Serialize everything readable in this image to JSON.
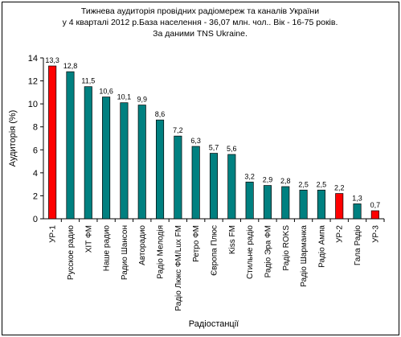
{
  "chart_data": {
    "type": "bar",
    "title": [
      "Тижнева аудиторія провідних радіомереж та каналів України",
      "у 4 кварталі 2012 р.База населення - 36,07 млн. чол.. Вік - 16-75 років.",
      "За даними TNS Ukraine."
    ],
    "xlabel": "Радіостанції",
    "ylabel": "Аудиторія (%)",
    "ylim": [
      0,
      14
    ],
    "yticks": [
      0,
      2,
      4,
      6,
      8,
      10,
      12,
      14
    ],
    "grid": false,
    "legend": "none",
    "categories": [
      "УР-1",
      "Русское радио",
      "ХІТ ФМ",
      "Наше радио",
      "Радио Шансон",
      "Авторадио",
      "Радіо Мелодія",
      "Радіо Люкс ФМ/Lux FM",
      "Ретро ФМ",
      "Європа Плюс",
      "Kiss FM",
      "Стильне радіо",
      "Радіо Эра ФМ",
      "Радіо ROKS",
      "Радіо Шарманка",
      "Радіо Ампа",
      "УР-2",
      "Гала Радіо",
      "УР-3"
    ],
    "values": [
      13.3,
      12.8,
      11.5,
      10.6,
      10.1,
      9.9,
      8.6,
      7.2,
      6.3,
      5.7,
      5.6,
      3.2,
      2.9,
      2.8,
      2.5,
      2.5,
      2.2,
      1.3,
      0.7
    ],
    "value_labels": [
      "13,3",
      "12,8",
      "11,5",
      "10,6",
      "10,1",
      "9,9",
      "8,6",
      "7,2",
      "6,3",
      "5,7",
      "5,6",
      "3,2",
      "2,9",
      "2,8",
      "2,5",
      "2,5",
      "2,2",
      "1,3",
      "0,7"
    ],
    "bar_colors": [
      "#ff0000",
      "#008080",
      "#008080",
      "#008080",
      "#008080",
      "#008080",
      "#008080",
      "#008080",
      "#008080",
      "#008080",
      "#008080",
      "#008080",
      "#008080",
      "#008080",
      "#008080",
      "#008080",
      "#ff0000",
      "#008080",
      "#ff0000"
    ],
    "colors": {
      "highlight": "#ff0000",
      "default": "#008080",
      "background": "#ffffff"
    }
  }
}
